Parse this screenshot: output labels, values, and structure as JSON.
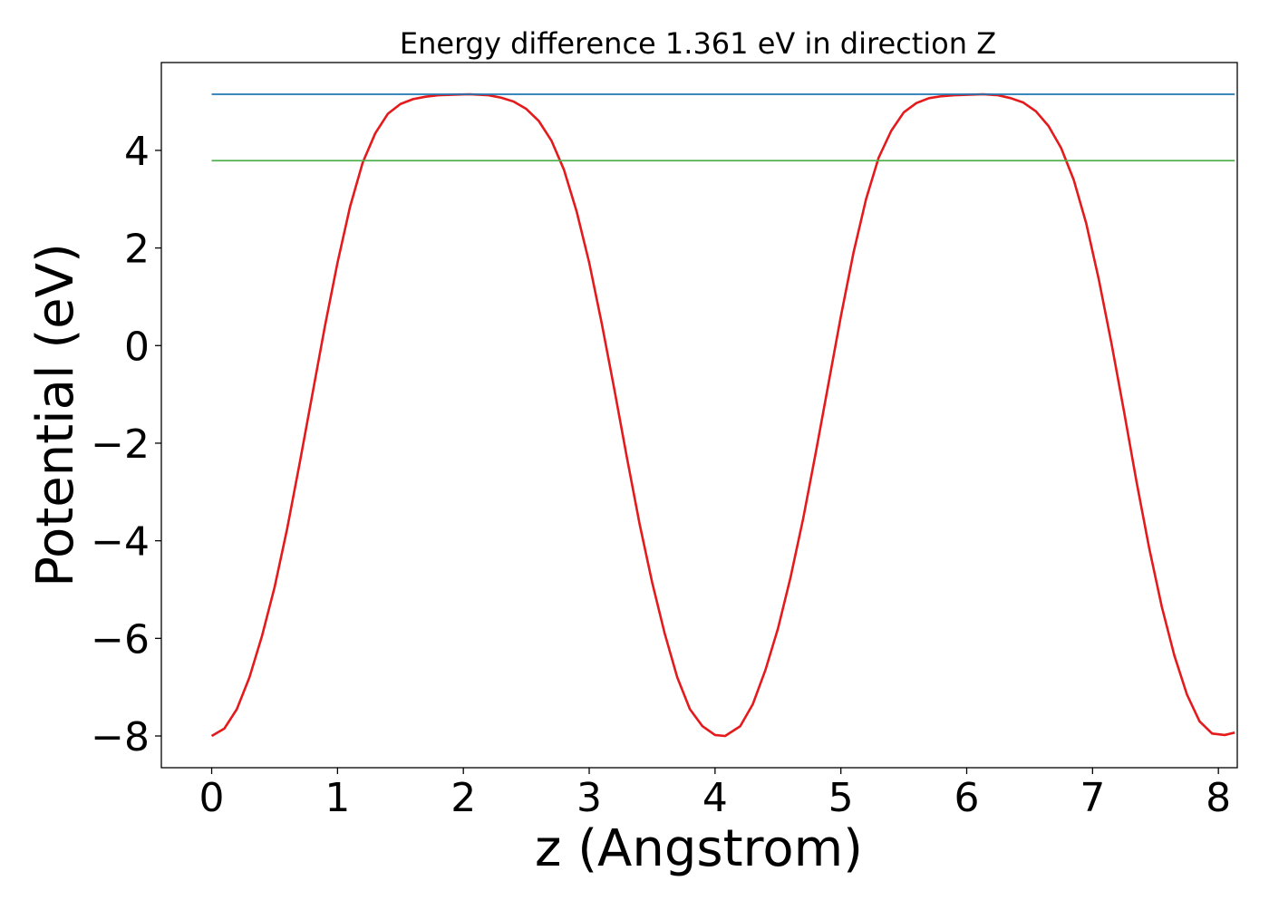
{
  "chart_data": {
    "type": "line",
    "title": "Energy difference 1.361 eV in direction Z",
    "xlabel": "z (Angstrom)",
    "ylabel": "Potential (eV)",
    "xlim": [
      -0.4,
      8.15
    ],
    "ylim": [
      -8.65,
      5.8
    ],
    "x_ticks": [
      0,
      1,
      2,
      3,
      4,
      5,
      6,
      7,
      8
    ],
    "x_tick_labels": [
      "0",
      "1",
      "2",
      "3",
      "4",
      "5",
      "6",
      "7",
      "8"
    ],
    "y_ticks": [
      -8,
      -6,
      -4,
      -2,
      0,
      2,
      4
    ],
    "y_tick_labels": [
      "−8",
      "−6",
      "−4",
      "−2",
      "0",
      "2",
      "4"
    ],
    "grid": false,
    "legend": "none",
    "series": [
      {
        "color": "#e41a1c",
        "x": [
          0.0,
          0.1,
          0.2,
          0.3,
          0.4,
          0.5,
          0.6,
          0.7,
          0.8,
          0.9,
          1.0,
          1.1,
          1.2,
          1.3,
          1.4,
          1.5,
          1.6,
          1.7,
          1.8,
          1.9,
          2.05,
          2.2,
          2.3,
          2.4,
          2.5,
          2.6,
          2.7,
          2.8,
          2.9,
          3.0,
          3.1,
          3.2,
          3.3,
          3.4,
          3.5,
          3.6,
          3.7,
          3.8,
          3.9,
          4.0,
          4.08,
          4.2,
          4.3,
          4.4,
          4.5,
          4.6,
          4.7,
          4.8,
          4.9,
          5.0,
          5.1,
          5.2,
          5.3,
          5.4,
          5.5,
          5.6,
          5.7,
          5.8,
          5.9,
          6.0,
          6.13,
          6.25,
          6.35,
          6.45,
          6.55,
          6.65,
          6.75,
          6.85,
          6.95,
          7.05,
          7.15,
          7.25,
          7.35,
          7.45,
          7.55,
          7.65,
          7.75,
          7.85,
          7.95,
          8.05,
          8.13
        ],
        "y": [
          -8.0,
          -7.85,
          -7.45,
          -6.8,
          -5.95,
          -4.95,
          -3.75,
          -2.4,
          -1.0,
          0.4,
          1.7,
          2.85,
          3.75,
          4.35,
          4.75,
          4.95,
          5.05,
          5.1,
          5.13,
          5.14,
          5.15,
          5.13,
          5.08,
          5.0,
          4.85,
          4.6,
          4.2,
          3.6,
          2.75,
          1.7,
          0.45,
          -0.9,
          -2.3,
          -3.65,
          -4.85,
          -5.9,
          -6.8,
          -7.45,
          -7.8,
          -7.98,
          -8.0,
          -7.8,
          -7.35,
          -6.65,
          -5.8,
          -4.75,
          -3.55,
          -2.2,
          -0.8,
          0.6,
          1.9,
          3.0,
          3.85,
          4.4,
          4.78,
          4.97,
          5.07,
          5.11,
          5.13,
          5.14,
          5.15,
          5.13,
          5.07,
          4.98,
          4.8,
          4.5,
          4.05,
          3.4,
          2.5,
          1.35,
          0.05,
          -1.35,
          -2.8,
          -4.15,
          -5.35,
          -6.35,
          -7.15,
          -7.7,
          -7.95,
          -7.98,
          -7.93
        ]
      },
      {
        "color": "#1f77b4",
        "x": [
          0.0,
          8.13
        ],
        "y": [
          5.15,
          5.15
        ]
      },
      {
        "color": "#4daf4a",
        "x": [
          0.0,
          8.13
        ],
        "y": [
          3.79,
          3.79
        ]
      }
    ]
  }
}
